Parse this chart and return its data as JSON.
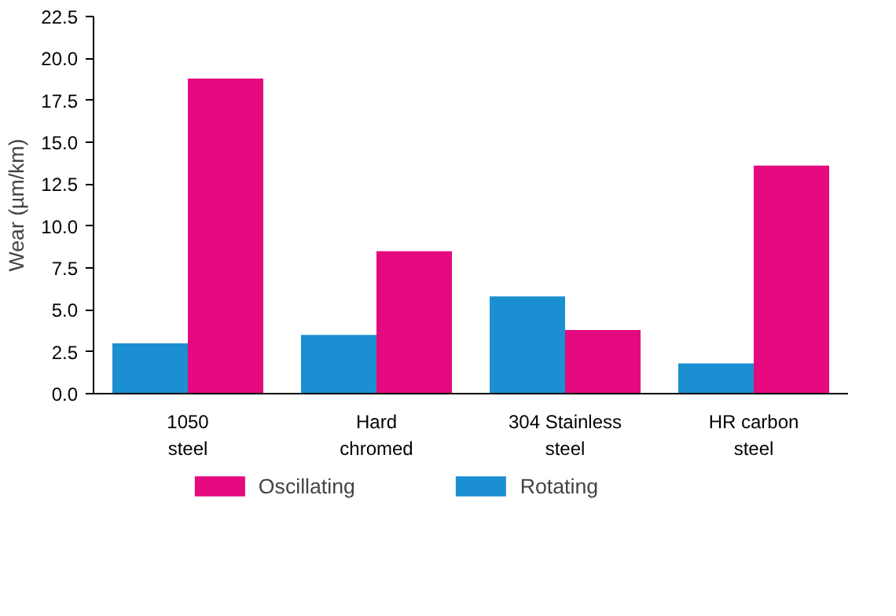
{
  "chart_data": {
    "type": "bar",
    "ylabel": "Wear (µm/km)",
    "categories": [
      "1050\nsteel",
      "Hard\nchromed",
      "304 Stainless\nsteel",
      "HR carbon\nsteel"
    ],
    "series": [
      {
        "name": "Oscillating",
        "color": "#e4097f",
        "values": [
          18.8,
          8.5,
          3.8,
          13.6
        ]
      },
      {
        "name": "Rotating",
        "color": "#1b8fd2",
        "values": [
          3.0,
          3.5,
          5.8,
          1.8
        ]
      }
    ],
    "ylim": [
      0,
      22.5
    ],
    "yticks": [
      {
        "value": 0,
        "label": "0.0"
      },
      2.5,
      {
        "value": 5,
        "label": "5.0"
      },
      7.5,
      {
        "value": 10,
        "label": "10.0"
      },
      12.5,
      {
        "value": 15,
        "label": "15.0"
      },
      17.5,
      {
        "value": 20,
        "label": "20.0"
      },
      22.5
    ],
    "grid": false,
    "legend": "bottom"
  }
}
